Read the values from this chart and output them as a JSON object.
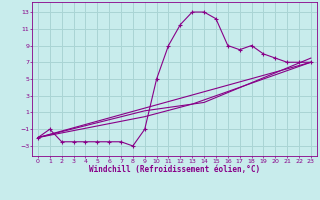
{
  "background_color": "#c8ecec",
  "grid_color": "#aad4d4",
  "line_color": "#880088",
  "xlabel": "Windchill (Refroidissement éolien,°C)",
  "xticks": [
    0,
    1,
    2,
    3,
    4,
    5,
    6,
    7,
    8,
    9,
    10,
    11,
    12,
    13,
    14,
    15,
    16,
    17,
    18,
    19,
    20,
    21,
    22,
    23
  ],
  "yticks": [
    -3,
    -1,
    1,
    3,
    5,
    7,
    9,
    11,
    13
  ],
  "xlim": [
    -0.5,
    23.5
  ],
  "ylim": [
    -4.2,
    14.2
  ],
  "series": [
    [
      0,
      -2
    ],
    [
      1,
      -1
    ],
    [
      2,
      -2.5
    ],
    [
      3,
      -2.5
    ],
    [
      4,
      -2.5
    ],
    [
      5,
      -2.5
    ],
    [
      6,
      -2.5
    ],
    [
      7,
      -2.5
    ],
    [
      8,
      -3
    ],
    [
      9,
      -1
    ],
    [
      10,
      5
    ],
    [
      11,
      9
    ],
    [
      12,
      11.5
    ],
    [
      13,
      13
    ],
    [
      14,
      13
    ],
    [
      15,
      12.2
    ],
    [
      16,
      9
    ],
    [
      17,
      8.5
    ],
    [
      18,
      9
    ],
    [
      19,
      8
    ],
    [
      20,
      7.5
    ],
    [
      21,
      7
    ],
    [
      22,
      7
    ],
    [
      23,
      7
    ]
  ],
  "line_straight": [
    [
      0,
      -2
    ],
    [
      23,
      7
    ]
  ],
  "line_mid1": [
    [
      0,
      -2
    ],
    [
      9,
      0.5
    ],
    [
      13,
      2.0
    ],
    [
      23,
      7
    ]
  ],
  "line_mid2": [
    [
      0,
      -2
    ],
    [
      9,
      1.2
    ],
    [
      14,
      2.2
    ],
    [
      23,
      7.5
    ]
  ]
}
